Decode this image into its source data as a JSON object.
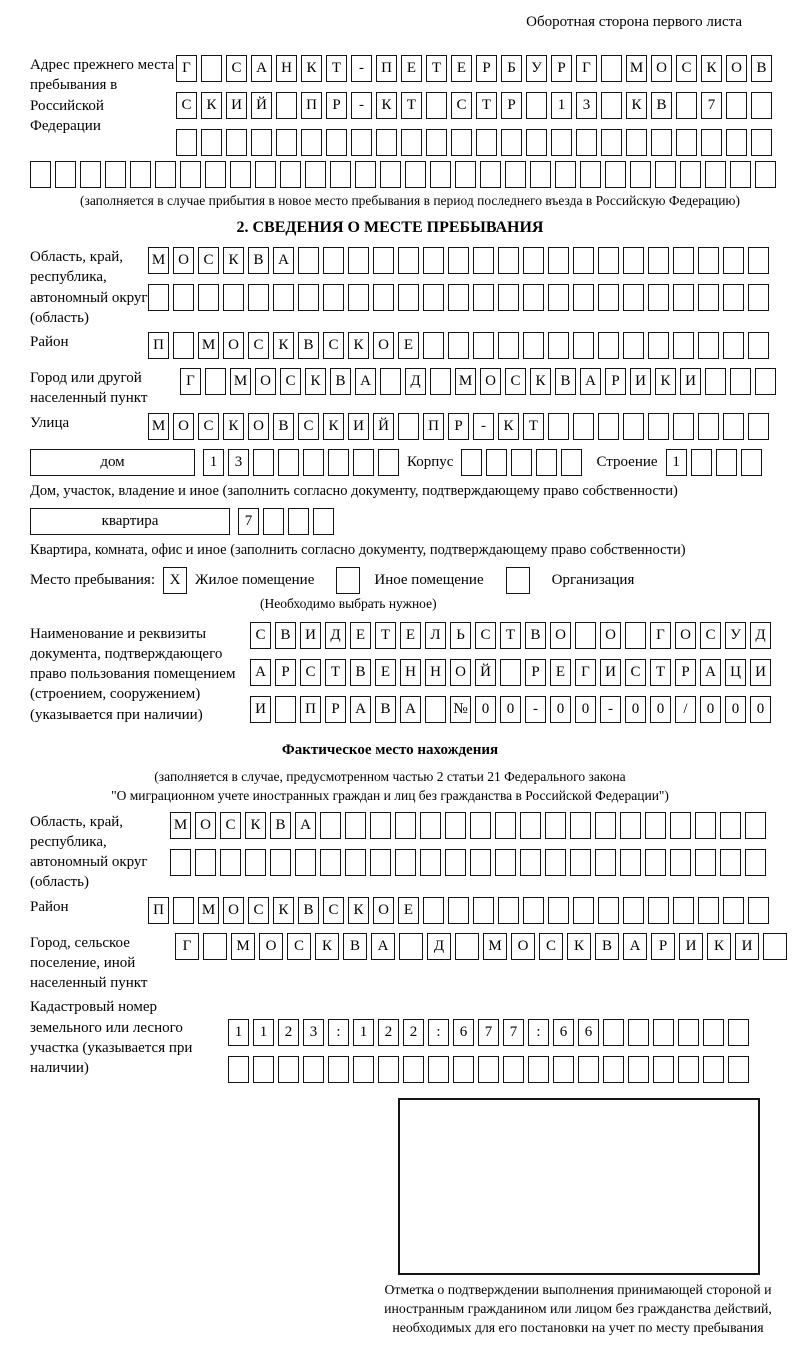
{
  "header_right": "Оборотная сторона первого листа",
  "section1": {
    "address_label": "Адрес прежнего места пребывания в Российской Федерации",
    "rows": [
      {
        "text": "Г САНКТ-ПЕТЕРБУРГ МОСКОВ",
        "len": 24
      },
      {
        "text": "СКИЙ ПР-КТ СТР 13 КВ 7",
        "len": 24
      },
      {
        "text": "",
        "len": 24
      },
      {
        "text": "",
        "len": 30
      }
    ],
    "note": "(заполняется в случае прибытия в новое место пребывания в период последнего въезда в Российскую Федерацию)"
  },
  "section2": {
    "title": "2. СВЕДЕНИЯ О МЕСТЕ ПРЕБЫВАНИЯ",
    "oblast": {
      "label": "Область, край, республика, автономный округ (область)",
      "rows": [
        {
          "text": "МОСКВА",
          "len": 25
        },
        {
          "text": "",
          "len": 25
        }
      ]
    },
    "raion": {
      "label": "Район",
      "row": {
        "text": "П МОСКВСКОЕ",
        "len": 25
      }
    },
    "gorod": {
      "label": "Город или другой населенный пункт",
      "row": {
        "text": "Г МОСКВА Д МОСКВАРИКИ",
        "len": 24
      }
    },
    "ulitsa": {
      "label": "Улица",
      "row": {
        "text": "МОСКОВСКИЙ ПР-КТ",
        "len": 25
      }
    },
    "dom": {
      "dom_label": "дом",
      "dom_boxes": {
        "text": "13",
        "len": 8
      },
      "korpus_label": "Корпус",
      "korpus_boxes": {
        "text": "",
        "len": 5
      },
      "stroenie_label": "Строение",
      "stroenie_boxes": {
        "text": "1",
        "len": 4
      },
      "caption": "Дом, участок, владение и иное (заполнить согласно документу, подтверждающему право собственности)"
    },
    "kvartira": {
      "label": "квартира",
      "boxes": {
        "text": "7",
        "len": 4
      },
      "caption": "Квартира, комната, офис и иное (заполнить согласно документу, подтверждающему право собственности)"
    },
    "mesto": {
      "label": "Место пребывания:",
      "options": [
        {
          "mark": "X",
          "label": "Жилое помещение"
        },
        {
          "mark": "",
          "label": "Иное помещение"
        },
        {
          "mark": "",
          "label": "Организация"
        }
      ],
      "note": "(Необходимо выбрать нужное)"
    },
    "doc": {
      "label": "Наименование и реквизиты документа, подтверждающего право пользования помещением (строением, сооружением) (указывается при наличии)",
      "rows": [
        {
          "text": "СВИДЕТЕЛЬСТВО О ГОСУД",
          "len": 21
        },
        {
          "text": "АРСТВЕННОЙ РЕГИСТРАЦИ",
          "len": 21
        },
        {
          "text": "И ПРАВА №00-00-00/000",
          "len": 21
        }
      ]
    }
  },
  "fact": {
    "title": "Фактическое место нахождения",
    "note1": "(заполняется в случае, предусмотренном частью 2 статьи 21 Федерального закона",
    "note2": "\"О миграционном учете иностранных граждан и лиц без гражданства в Российской Федерации\")",
    "oblast": {
      "label": "Область, край, республика, автономный округ (область)",
      "rows": [
        {
          "text": "МОСКВА",
          "len": 24
        },
        {
          "text": "",
          "len": 24
        }
      ]
    },
    "raion": {
      "label": "Район",
      "row": {
        "text": "П МОСКВСКОЕ",
        "len": 25
      }
    },
    "gorod": {
      "label": "Город, сельское поселение, иной населенный пункт",
      "row": {
        "text": "Г МОСКВА Д МОСКВАРИКИ",
        "len": 22
      }
    },
    "kadastr": {
      "label": "Кадастровый номер земельного или лесного участка (указывается при наличии)",
      "rows": [
        {
          "text": "1123:122:677:66",
          "len": 21
        },
        {
          "text": "",
          "len": 21
        }
      ]
    }
  },
  "stamp": {
    "caption": "Отметка о подтверждении выполнения принимающей стороной и иностранным гражданином или лицом без гражданства действий, необходимых для его постановки на учет по месту пребывания"
  }
}
